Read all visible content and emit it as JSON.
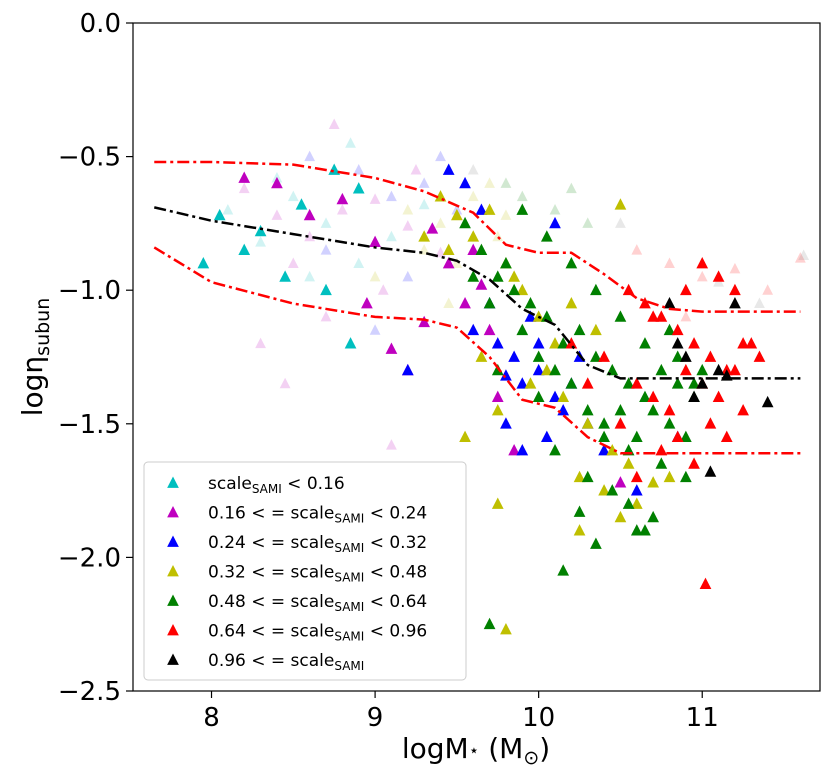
{
  "chart_data": {
    "type": "scatter",
    "title": "",
    "xlabel_main": "logM",
    "xlabel_sub": "⋆",
    "xlabel_units": " (M",
    "xlabel_units_sub": "⊙",
    "xlabel_close": ")",
    "ylabel_main": "logη",
    "ylabel_sub": "subun",
    "xlim": [
      7.52,
      11.72
    ],
    "ylim": [
      -2.5,
      0.0
    ],
    "xticks": [
      8,
      9,
      10,
      11
    ],
    "xtick_labels": [
      "8",
      "9",
      "10",
      "11"
    ],
    "yticks": [
      0.0,
      -0.5,
      -1.0,
      -1.5,
      -2.0,
      -2.5
    ],
    "ytick_labels": [
      "0.0",
      "−0.5",
      "−1.0",
      "−1.5",
      "−2.0",
      "−2.5"
    ],
    "legend_position": "lower-left",
    "series": [
      {
        "name": "cyan",
        "color": "#00bfbf",
        "label_parts": [
          {
            "t": "scale"
          },
          {
            "t": "SAMI",
            "sub": true
          },
          {
            "t": " < 0.16"
          }
        ],
        "x": [
          8.7,
          8.85,
          8.05,
          8.3,
          7.95,
          8.55,
          8.9,
          8.2,
          8.45,
          8.75
        ],
        "y": [
          -1.0,
          -1.2,
          -0.72,
          -0.78,
          -0.9,
          -0.68,
          -0.62,
          -0.85,
          -0.95,
          -0.55
        ]
      },
      {
        "name": "magenta",
        "color": "#bf00bf",
        "label_parts": [
          {
            "t": "0.16 < = scale"
          },
          {
            "t": "SAMI",
            "sub": true
          },
          {
            "t": " < 0.24"
          }
        ],
        "x": [
          9.3,
          9.1,
          9.55,
          9.65,
          9.45,
          9.2,
          8.95,
          9.6,
          10.5,
          9.85,
          8.6,
          8.8,
          9.0,
          9.35,
          8.4,
          9.7,
          9.75,
          8.2
        ],
        "y": [
          -1.12,
          -1.22,
          -1.05,
          -0.98,
          -0.9,
          -1.3,
          -1.05,
          -0.85,
          -1.72,
          -1.6,
          -0.72,
          -0.66,
          -0.82,
          -0.77,
          -0.6,
          -1.15,
          -1.4,
          -0.58
        ]
      },
      {
        "name": "blue",
        "color": "#0000ff",
        "label_parts": [
          {
            "t": "0.24 < = scale"
          },
          {
            "t": "SAMI",
            "sub": true
          },
          {
            "t": " < 0.32"
          }
        ],
        "x": [
          9.6,
          9.75,
          9.85,
          9.9,
          10.0,
          10.1,
          10.2,
          9.7,
          9.8,
          9.95,
          10.3,
          10.05,
          9.65,
          9.55,
          9.45,
          10.4,
          9.9,
          10.15,
          10.25,
          9.2,
          10.6,
          10.85,
          10.0,
          9.8,
          10.1
        ],
        "y": [
          -1.15,
          -1.2,
          -1.25,
          -1.35,
          -1.3,
          -1.4,
          -1.35,
          -1.05,
          -1.5,
          -1.1,
          -1.5,
          -1.55,
          -0.7,
          -0.6,
          -0.55,
          -1.6,
          -1.6,
          -1.45,
          -1.25,
          -1.3,
          -1.75,
          -1.55,
          -1.2,
          -1.32,
          -0.75
        ]
      },
      {
        "name": "yellow",
        "color": "#bfbf00",
        "label_parts": [
          {
            "t": "0.32 < = scale"
          },
          {
            "t": "SAMI",
            "sub": true
          },
          {
            "t": " < 0.48"
          }
        ],
        "x": [
          9.45,
          9.6,
          9.8,
          9.9,
          10.0,
          10.1,
          10.2,
          10.35,
          10.5,
          9.7,
          9.85,
          10.05,
          10.15,
          10.3,
          10.45,
          10.6,
          9.55,
          9.65,
          9.75,
          9.95,
          10.25,
          10.4,
          10.55,
          10.7,
          10.8,
          9.8,
          9.75,
          10.25,
          10.5,
          9.4,
          9.5,
          9.3
        ],
        "y": [
          -0.85,
          -0.8,
          -0.9,
          -1.0,
          -1.1,
          -1.2,
          -1.05,
          -1.15,
          -0.68,
          -0.7,
          -0.95,
          -1.3,
          -1.4,
          -1.5,
          -1.6,
          -1.8,
          -1.55,
          -1.25,
          -1.45,
          -1.35,
          -1.7,
          -1.75,
          -1.65,
          -1.72,
          -1.7,
          -2.27,
          -1.8,
          -1.9,
          -1.85,
          -0.65,
          -0.72,
          -0.8
        ]
      },
      {
        "name": "green",
        "color": "#008000",
        "label_parts": [
          {
            "t": "0.48 < = scale"
          },
          {
            "t": "SAMI",
            "sub": true
          },
          {
            "t": " < 0.64"
          }
        ],
        "x": [
          9.55,
          9.65,
          9.75,
          9.85,
          9.95,
          10.05,
          10.15,
          10.25,
          10.35,
          10.45,
          10.55,
          10.65,
          10.75,
          10.85,
          10.95,
          9.6,
          9.7,
          9.8,
          9.9,
          10.0,
          10.1,
          10.2,
          10.3,
          10.4,
          10.5,
          10.6,
          10.7,
          10.8,
          10.9,
          11.0,
          9.9,
          10.05,
          10.2,
          10.35,
          10.5,
          10.65,
          10.8,
          10.95,
          10.1,
          10.3,
          10.55,
          10.75,
          10.0,
          10.4,
          10.6,
          9.7,
          10.15,
          10.45,
          10.7,
          10.9,
          9.75,
          10.35,
          10.55,
          10.85,
          10.25,
          10.65
        ],
        "y": [
          -0.75,
          -0.85,
          -0.95,
          -1.0,
          -1.05,
          -1.1,
          -1.2,
          -1.15,
          -1.25,
          -1.3,
          -1.35,
          -1.4,
          -1.3,
          -1.25,
          -1.35,
          -0.95,
          -1.05,
          -0.9,
          -1.15,
          -1.25,
          -1.3,
          -1.35,
          -1.45,
          -1.5,
          -1.45,
          -1.55,
          -1.45,
          -1.5,
          -1.55,
          -1.3,
          -0.7,
          -0.8,
          -0.9,
          -1.0,
          -1.1,
          -1.2,
          -1.15,
          -1.4,
          -1.6,
          -1.7,
          -1.8,
          -1.65,
          -1.4,
          -1.55,
          -1.9,
          -2.25,
          -2.05,
          -1.75,
          -1.85,
          -1.7,
          -1.3,
          -1.95,
          -1.6,
          -1.35,
          -1.83,
          -1.9
        ]
      },
      {
        "name": "red",
        "color": "#ff0000",
        "label_parts": [
          {
            "t": "0.64 < = scale"
          },
          {
            "t": "SAMI",
            "sub": true
          },
          {
            "t": " < 0.96"
          }
        ],
        "x": [
          10.55,
          10.65,
          10.75,
          10.85,
          10.95,
          11.05,
          11.15,
          11.25,
          11.35,
          10.6,
          10.7,
          10.8,
          10.9,
          11.0,
          11.1,
          11.2,
          11.3,
          10.5,
          10.85,
          11.05,
          11.25,
          10.75,
          10.95,
          11.15,
          10.2,
          10.4,
          10.6,
          11.0,
          11.2,
          11.02,
          10.3,
          10.7,
          10.9,
          11.1
        ],
        "y": [
          -1.0,
          -1.05,
          -1.1,
          -1.15,
          -1.2,
          -1.25,
          -1.3,
          -1.2,
          -1.25,
          -1.35,
          -1.4,
          -1.45,
          -1.3,
          -1.35,
          -1.4,
          -1.3,
          -1.2,
          -1.5,
          -1.55,
          -1.5,
          -1.45,
          -1.6,
          -1.65,
          -1.55,
          -1.2,
          -1.25,
          -1.7,
          -0.9,
          -1.0,
          -2.1,
          -1.35,
          -1.1,
          -1.0,
          -0.95
        ]
      },
      {
        "name": "black",
        "color": "#000000",
        "label_parts": [
          {
            "t": "0.96 < = scale"
          },
          {
            "t": "SAMI",
            "sub": true
          }
        ],
        "x": [
          10.8,
          10.9,
          11.0,
          11.1,
          11.2,
          11.15,
          10.95,
          11.05,
          11.4,
          10.85
        ],
        "y": [
          -1.05,
          -1.25,
          -1.35,
          -1.3,
          -1.05,
          -1.32,
          -1.4,
          -1.68,
          -1.42,
          -1.2
        ]
      }
    ],
    "faint_points": {
      "colors": [
        "#00bfbf",
        "#bf00bf",
        "#0000ff",
        "#bfbf00",
        "#008000",
        "#ff0000",
        "#808080"
      ],
      "points": [
        [
          8.1,
          -0.7,
          0
        ],
        [
          8.3,
          -0.82,
          0
        ],
        [
          8.5,
          -0.65,
          0
        ],
        [
          8.7,
          -0.75,
          0
        ],
        [
          8.9,
          -0.9,
          0
        ],
        [
          9.1,
          -0.8,
          0
        ],
        [
          8.6,
          -0.95,
          0
        ],
        [
          8.85,
          -0.45,
          0
        ],
        [
          9.3,
          -0.68,
          0
        ],
        [
          8.4,
          -0.58,
          0
        ],
        [
          8.2,
          -0.62,
          1
        ],
        [
          8.4,
          -0.72,
          1
        ],
        [
          8.6,
          -0.8,
          1
        ],
        [
          8.8,
          -0.7,
          1
        ],
        [
          9.0,
          -0.66,
          1
        ],
        [
          9.2,
          -0.76,
          1
        ],
        [
          9.4,
          -0.86,
          1
        ],
        [
          8.5,
          -0.9,
          1
        ],
        [
          8.7,
          -1.1,
          1
        ],
        [
          8.3,
          -1.2,
          1
        ],
        [
          8.45,
          -1.35,
          1
        ],
        [
          9.1,
          -1.58,
          1
        ],
        [
          8.95,
          -1.05,
          1
        ],
        [
          9.25,
          -0.55,
          1
        ],
        [
          8.75,
          -0.38,
          1
        ],
        [
          9.05,
          -1.0,
          1
        ],
        [
          8.9,
          -0.55,
          2
        ],
        [
          9.1,
          -0.65,
          2
        ],
        [
          9.3,
          -0.6,
          2
        ],
        [
          9.5,
          -0.7,
          2
        ],
        [
          8.7,
          -0.85,
          2
        ],
        [
          9.2,
          -0.95,
          2
        ],
        [
          8.6,
          -0.5,
          2
        ],
        [
          9.4,
          -0.5,
          2
        ],
        [
          9.0,
          -1.15,
          2
        ],
        [
          9.2,
          -0.7,
          3
        ],
        [
          9.4,
          -0.75,
          3
        ],
        [
          9.6,
          -0.65,
          3
        ],
        [
          9.8,
          -0.72,
          3
        ],
        [
          9.3,
          -0.85,
          3
        ],
        [
          9.5,
          -0.9,
          3
        ],
        [
          9.7,
          -0.6,
          3
        ],
        [
          9.0,
          -0.95,
          3
        ],
        [
          9.45,
          -1.05,
          3
        ],
        [
          9.75,
          -0.8,
          3
        ],
        [
          9.9,
          -0.65,
          4
        ],
        [
          10.1,
          -0.7,
          4
        ],
        [
          10.3,
          -0.75,
          4
        ],
        [
          9.8,
          -0.6,
          4
        ],
        [
          10.2,
          -0.62,
          4
        ],
        [
          10.6,
          -0.85,
          5
        ],
        [
          10.8,
          -0.9,
          5
        ],
        [
          11.0,
          -0.95,
          5
        ],
        [
          11.2,
          -0.92,
          5
        ],
        [
          11.4,
          -1.0,
          5
        ],
        [
          11.6,
          -0.88,
          5
        ],
        [
          10.9,
          -1.1,
          5
        ],
        [
          11.1,
          -0.97,
          6
        ],
        [
          11.35,
          -1.05,
          6
        ],
        [
          11.62,
          -0.87,
          6
        ],
        [
          9.6,
          -0.55,
          6
        ],
        [
          10.5,
          -0.75,
          6
        ]
      ]
    },
    "lines": [
      {
        "name": "median",
        "color": "#000000",
        "style": "dashdot",
        "x": [
          7.65,
          8.0,
          8.5,
          9.0,
          9.3,
          9.5,
          9.7,
          9.9,
          10.1,
          10.3,
          10.5,
          10.7,
          10.9,
          11.2,
          11.6
        ],
        "y": [
          -0.69,
          -0.74,
          -0.79,
          -0.84,
          -0.86,
          -0.89,
          -0.96,
          -1.07,
          -1.13,
          -1.28,
          -1.33,
          -1.33,
          -1.33,
          -1.33,
          -1.33
        ]
      },
      {
        "name": "upper-bound",
        "color": "#ff0000",
        "style": "dashdot",
        "x": [
          7.65,
          8.0,
          8.5,
          9.0,
          9.3,
          9.6,
          9.8,
          10.0,
          10.2,
          10.4,
          10.6,
          10.8,
          11.0,
          11.3,
          11.6
        ],
        "y": [
          -0.52,
          -0.52,
          -0.53,
          -0.58,
          -0.63,
          -0.71,
          -0.83,
          -0.86,
          -0.86,
          -0.94,
          -1.03,
          -1.07,
          -1.08,
          -1.08,
          -1.08
        ]
      },
      {
        "name": "lower-bound",
        "color": "#ff0000",
        "style": "dashdot",
        "x": [
          7.65,
          8.0,
          8.5,
          9.0,
          9.3,
          9.5,
          9.7,
          9.9,
          10.1,
          10.3,
          10.5,
          10.7,
          10.9,
          11.2,
          11.6
        ],
        "y": [
          -0.84,
          -0.97,
          -1.05,
          -1.1,
          -1.11,
          -1.14,
          -1.25,
          -1.41,
          -1.44,
          -1.55,
          -1.61,
          -1.61,
          -1.61,
          -1.61,
          -1.61
        ]
      }
    ]
  }
}
